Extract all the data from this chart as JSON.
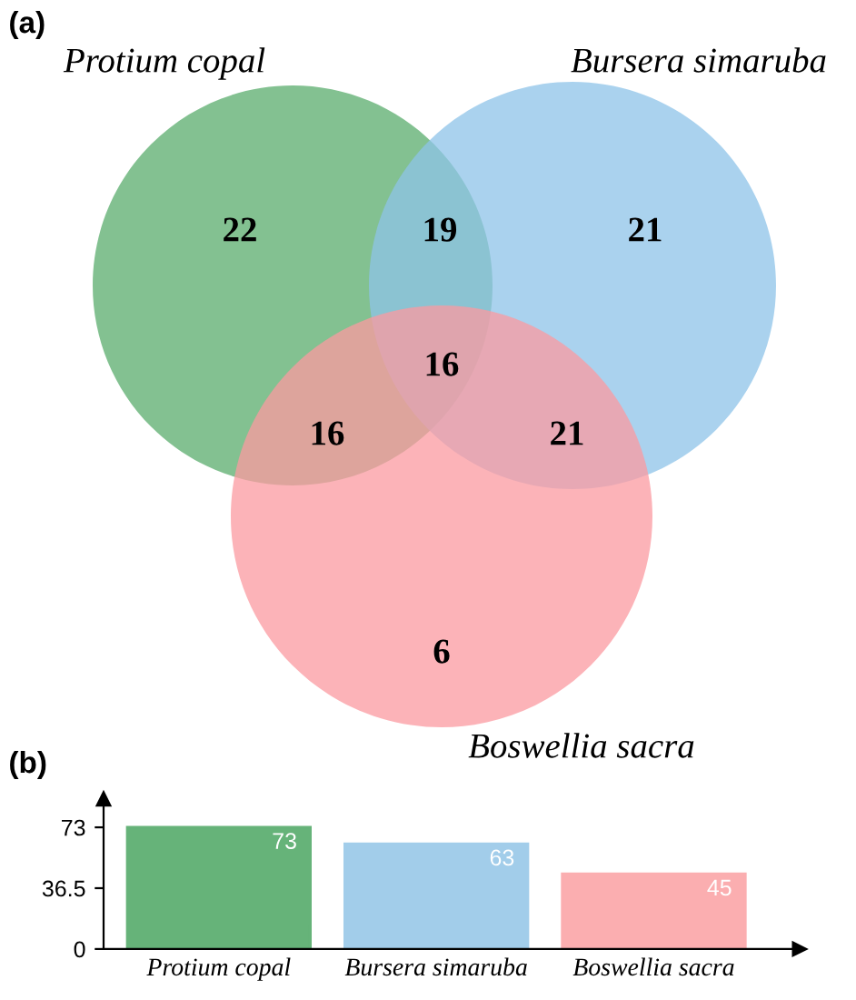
{
  "chart_data": [
    {
      "type": "other",
      "title": "(a)",
      "categories": [
        null,
        null,
        null,
        null,
        null,
        null,
        null
      ],
      "values": [
        22,
        19,
        21,
        16,
        16,
        21,
        6
      ],
      "data_labels": true,
      "annotations": [
        "Protium copal",
        "Bursera simaruba",
        "Boswellia sacra"
      ]
    },
    {
      "type": "bar",
      "title": "(b)",
      "categories": [
        "Protium copal",
        "Bursera simaruba",
        "Boswellia sacra"
      ],
      "values": [
        73,
        63,
        45
      ],
      "colors": [
        "#66b379",
        "#a2cdea",
        "#fbaeb0"
      ],
      "ylim": [
        0,
        90
      ],
      "yticks": [
        0,
        36.5,
        73
      ],
      "data_labels": true,
      "grid": false,
      "legend": false
    }
  ]
}
